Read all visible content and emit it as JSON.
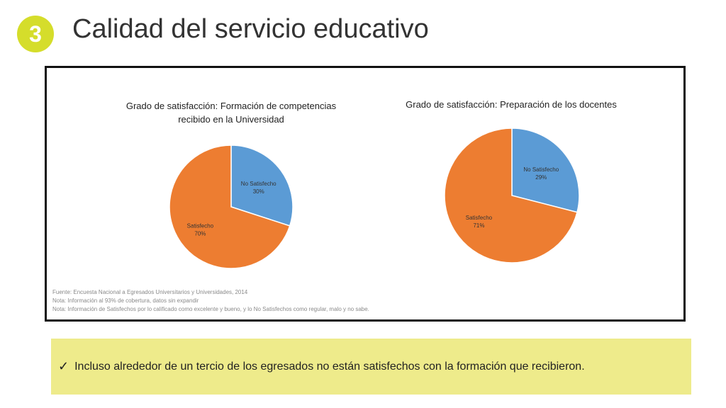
{
  "slide": {
    "number": "3",
    "title": "Calidad del servicio educativo"
  },
  "colors": {
    "badge": "#d5dd2b",
    "no_satisfecho": "#5b9bd5",
    "satisfecho": "#ed7d31",
    "callout_bg": "#eeeb8b"
  },
  "chart_data": [
    {
      "type": "pie",
      "title_lines": [
        "Grado de satisfacción: Formación de competencias",
        "recibido en la Universidad"
      ],
      "slices": [
        {
          "label": "No Satisfecho",
          "value": 30,
          "display": "30%"
        },
        {
          "label": "Satisfecho",
          "value": 70,
          "display": "70%"
        }
      ]
    },
    {
      "type": "pie",
      "title_lines": [
        "Grado de satisfacción: Preparación de los docentes"
      ],
      "slices": [
        {
          "label": "No Satisfecho",
          "value": 29,
          "display": "29%"
        },
        {
          "label": "Satisfecho",
          "value": 71,
          "display": "71%"
        }
      ]
    }
  ],
  "notes": [
    "Fuente: Encuesta Nacional a Egresados Universitarios y Universidades, 2014",
    "Nota: Información al 93% de cobertura, datos sin expandir",
    "Nota: Información de Satisfechos por lo calificado como excelente y bueno, y lo No Satisfechos como regular, malo y no sabe."
  ],
  "callout": {
    "check_icon": "checkmark-icon",
    "text": "Incluso alrededor de un tercio de los egresados no están satisfechos con la formación que recibieron."
  }
}
